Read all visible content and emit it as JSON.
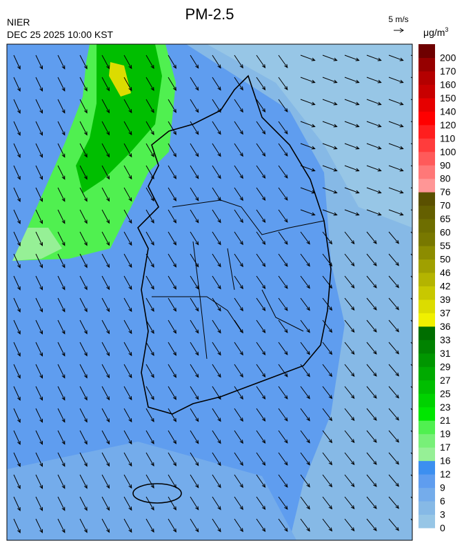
{
  "header": {
    "title": "PM-2.5",
    "agency": "NIER",
    "timestamp": "DEC 25 2025 10:00 KST",
    "wind_scale": "5 m/s"
  },
  "legend": {
    "unit_base": "μg/m",
    "unit_exponent": "3",
    "ticks": [
      0,
      3,
      6,
      9,
      12,
      16,
      17,
      19,
      21,
      23,
      25,
      27,
      29,
      31,
      33,
      36,
      37,
      39,
      42,
      46,
      50,
      55,
      60,
      65,
      70,
      76,
      80,
      90,
      100,
      110,
      120,
      140,
      150,
      160,
      170,
      200
    ],
    "colors": [
      "#97c6e6",
      "#86b9e6",
      "#74aceb",
      "#5f9def",
      "#3c8ff0",
      "#96f096",
      "#78f078",
      "#50f050",
      "#00e600",
      "#00d200",
      "#00be00",
      "#00aa00",
      "#009600",
      "#008200",
      "#006e00",
      "#f0f000",
      "#dcdc00",
      "#c8c800",
      "#b4b400",
      "#a0a000",
      "#8c8c00",
      "#787800",
      "#6e6e00",
      "#645f00",
      "#5a5000",
      "#ff9696",
      "#ff7878",
      "#ff5a5a",
      "#ff3c3c",
      "#ff1e1e",
      "#ff0000",
      "#e60000",
      "#c80000",
      "#b40000",
      "#960000",
      "#6e0000"
    ]
  }
}
